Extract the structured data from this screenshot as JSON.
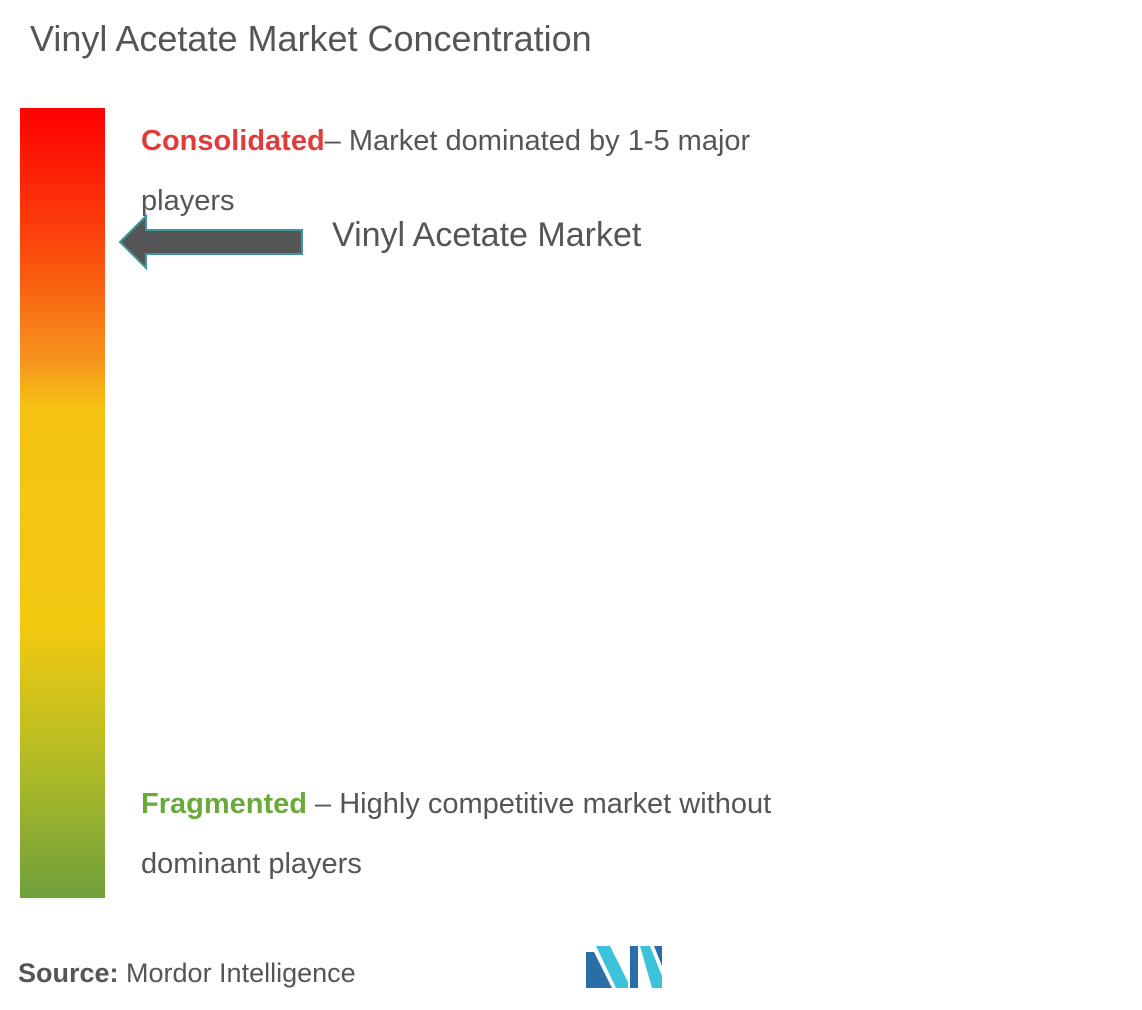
{
  "title": "Vinyl Acetate Market Concentration",
  "scale": {
    "top_color": "#ff0000",
    "mid_color": "#f2c811",
    "bottom_color": "#6fa03c"
  },
  "consolidated": {
    "term": "Consolidated",
    "description": "– Market dominated by 1-5 major players",
    "color": "#e03c3c"
  },
  "fragmented": {
    "term": "Fragmented",
    "description": " – Highly competitive market without dominant players",
    "color": "#6aaa3c"
  },
  "marker": {
    "label": "Vinyl Acetate Market",
    "arrow_icon": "left-arrow-icon",
    "arrow_fill": "#555555",
    "arrow_outline": "#3a9aa0"
  },
  "source": {
    "label": "Source:",
    "value": " Mordor Intelligence"
  },
  "logo": {
    "icon": "mordor-intelligence-logo-icon",
    "colors": [
      "#3dc3d9",
      "#2a6ea8"
    ]
  }
}
